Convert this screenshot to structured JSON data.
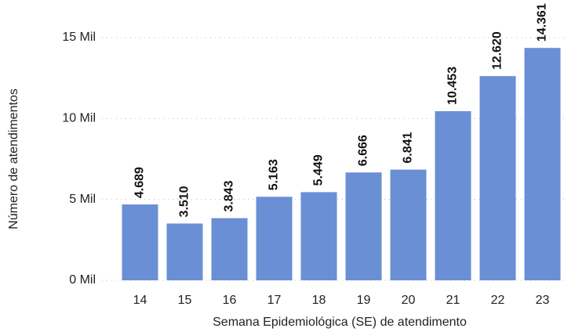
{
  "chart_data": {
    "type": "bar",
    "x_label": "Semana Epidemiológica (SE) de atendimento",
    "y_label": "Número de atendimentos",
    "categories": [
      "14",
      "15",
      "16",
      "17",
      "18",
      "19",
      "20",
      "21",
      "22",
      "23"
    ],
    "values": [
      4689,
      3510,
      3843,
      5163,
      5449,
      6666,
      6841,
      10453,
      12620,
      14361
    ],
    "value_labels": [
      "4.689",
      "3.510",
      "3.843",
      "5.163",
      "5.449",
      "6.666",
      "6.841",
      "10.453",
      "12.620",
      "14.361"
    ],
    "color": "#6a8fd4",
    "ylim": [
      0,
      15000
    ],
    "yticks": [
      {
        "value": 0,
        "label": "0 Mil"
      },
      {
        "value": 5000,
        "label": "5 Mil"
      },
      {
        "value": 10000,
        "label": "10 Mil"
      },
      {
        "value": 15000,
        "label": "15 Mil"
      }
    ],
    "grid": true
  }
}
